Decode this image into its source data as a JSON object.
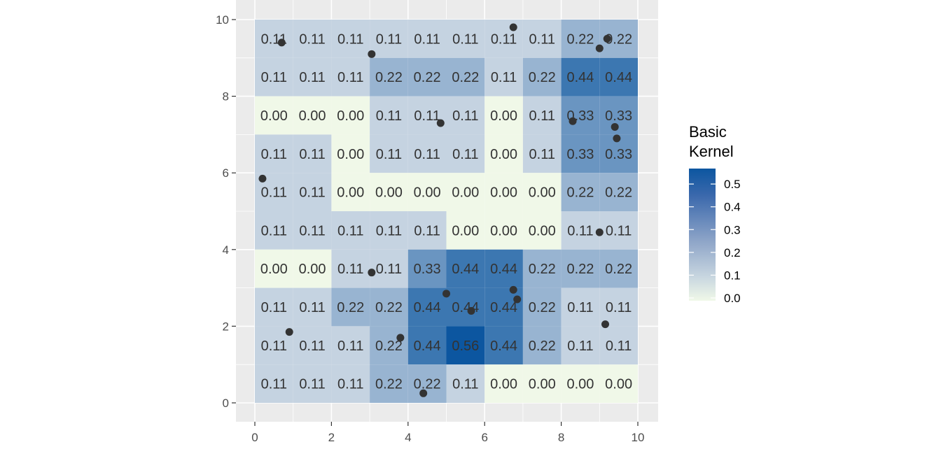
{
  "chart_data": {
    "type": "heatmap",
    "xlim": [
      0,
      10
    ],
    "ylim": [
      0,
      10
    ],
    "x_ticks": [
      0,
      2,
      4,
      6,
      8,
      10
    ],
    "y_ticks": [
      0,
      2,
      4,
      6,
      8,
      10
    ],
    "x_tick_labels": [
      "0",
      "2",
      "4",
      "6",
      "8",
      "10"
    ],
    "y_tick_labels": [
      "0",
      "2",
      "4",
      "6",
      "8",
      "10"
    ],
    "grid": true,
    "cell_width": 1,
    "cell_height": 1,
    "row_y_centers": [
      9.5,
      8.5,
      7.5,
      6.5,
      5.5,
      4.5,
      3.5,
      2.5,
      1.5,
      0.5
    ],
    "col_x_centers": [
      0.5,
      1.5,
      2.5,
      3.5,
      4.5,
      5.5,
      6.5,
      7.5,
      8.5,
      9.5
    ],
    "cells": [
      [
        "0.11",
        "0.11",
        "0.11",
        "0.11",
        "0.11",
        "0.11",
        "0.11",
        "0.11",
        "0.22",
        "0.22"
      ],
      [
        "0.11",
        "0.11",
        "0.11",
        "0.22",
        "0.22",
        "0.22",
        "0.11",
        "0.22",
        "0.44",
        "0.44"
      ],
      [
        "0.00",
        "0.00",
        "0.00",
        "0.11",
        "0.11",
        "0.11",
        "0.00",
        "0.11",
        "0.33",
        "0.33"
      ],
      [
        "0.11",
        "0.11",
        "0.00",
        "0.11",
        "0.11",
        "0.11",
        "0.00",
        "0.11",
        "0.33",
        "0.33"
      ],
      [
        "0.11",
        "0.11",
        "0.00",
        "0.00",
        "0.00",
        "0.00",
        "0.00",
        "0.00",
        "0.22",
        "0.22"
      ],
      [
        "0.11",
        "0.11",
        "0.11",
        "0.11",
        "0.11",
        "0.00",
        "0.00",
        "0.00",
        "0.11",
        "0.11"
      ],
      [
        "0.00",
        "0.00",
        "0.11",
        "0.11",
        "0.33",
        "0.44",
        "0.44",
        "0.22",
        "0.22",
        "0.22"
      ],
      [
        "0.11",
        "0.11",
        "0.22",
        "0.22",
        "0.44",
        "0.44",
        "0.44",
        "0.22",
        "0.11",
        "0.11"
      ],
      [
        "0.11",
        "0.11",
        "0.11",
        "0.22",
        "0.44",
        "0.56",
        "0.44",
        "0.22",
        "0.11",
        "0.11"
      ],
      [
        "0.11",
        "0.11",
        "0.11",
        "0.22",
        "0.22",
        "0.11",
        "0.00",
        "0.00",
        "0.00",
        "0.00"
      ]
    ],
    "points": [
      {
        "x": 0.7,
        "y": 9.4
      },
      {
        "x": 3.05,
        "y": 9.1
      },
      {
        "x": 6.75,
        "y": 9.8
      },
      {
        "x": 9.0,
        "y": 9.25
      },
      {
        "x": 9.2,
        "y": 9.5
      },
      {
        "x": 4.85,
        "y": 7.3
      },
      {
        "x": 8.3,
        "y": 7.35
      },
      {
        "x": 9.4,
        "y": 7.2
      },
      {
        "x": 9.45,
        "y": 6.9
      },
      {
        "x": 0.2,
        "y": 5.85
      },
      {
        "x": 9.0,
        "y": 4.45
      },
      {
        "x": 3.05,
        "y": 3.4
      },
      {
        "x": 5.0,
        "y": 2.85
      },
      {
        "x": 6.75,
        "y": 2.95
      },
      {
        "x": 6.85,
        "y": 2.7
      },
      {
        "x": 5.65,
        "y": 2.4
      },
      {
        "x": 0.9,
        "y": 1.85
      },
      {
        "x": 3.8,
        "y": 1.7
      },
      {
        "x": 9.15,
        "y": 2.05
      },
      {
        "x": 4.4,
        "y": 0.25
      }
    ],
    "legend": {
      "title_lines": [
        "Basic",
        "Kernel"
      ],
      "ticks": [
        0.0,
        0.1,
        0.2,
        0.3,
        0.4,
        0.5
      ],
      "tick_labels": [
        "0.0",
        "0.1",
        "0.2",
        "0.3",
        "0.4",
        "0.5"
      ],
      "range": [
        0,
        0.5556
      ],
      "placement": "right"
    },
    "colors": {
      "low": "#f0f8e8",
      "mid": "#c5d3e1",
      "high": "#0c56a0",
      "panel": "#ebebeb",
      "grid": "#ffffff",
      "point": "#333333"
    }
  }
}
